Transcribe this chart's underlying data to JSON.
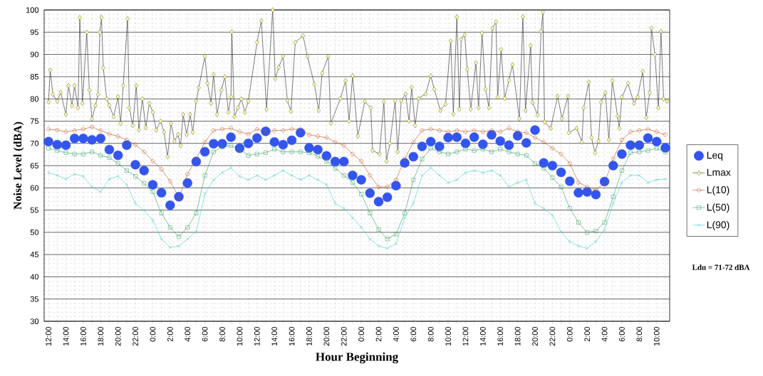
{
  "chart_data": {
    "type": "line",
    "xlabel": "Hour Beginning",
    "ylabel": "Noise Level (dBA)",
    "annotations": [
      "Ldn = 71-72  dBA"
    ],
    "xlim": [
      "--01-01T11:30",
      "--01-04T11:30"
    ],
    "ylim": [
      30,
      100
    ],
    "yticks": [
      30,
      35,
      40,
      45,
      50,
      55,
      60,
      65,
      70,
      75,
      80,
      85,
      90,
      95,
      100
    ],
    "xticks": [
      {
        "value": "--01-01T12:00",
        "label": "12:00"
      },
      {
        "value": "--01-01T13:00",
        "label": null
      },
      {
        "value": "--01-01T14:00",
        "label": "14:00"
      },
      {
        "value": "--01-01T15:00",
        "label": null
      },
      {
        "value": "--01-01T16:00",
        "label": "16:00"
      },
      {
        "value": "--01-01T17:00",
        "label": null
      },
      {
        "value": "--01-01T18:00",
        "label": "18:00"
      },
      {
        "value": "--01-01T19:00",
        "label": null
      },
      {
        "value": "--01-01T20:00",
        "label": "20:00"
      },
      {
        "value": "--01-01T21:00",
        "label": null
      },
      {
        "value": "--01-01T22:00",
        "label": "22:00"
      },
      {
        "value": "--01-01T23:00",
        "label": null
      },
      {
        "value": "--01-02T00:00",
        "label": "0:00"
      },
      {
        "value": "--01-02T01:00",
        "label": null
      },
      {
        "value": "--01-02T02:00",
        "label": "2:00"
      },
      {
        "value": "--01-02T03:00",
        "label": null
      },
      {
        "value": "--01-02T04:00",
        "label": "4:00"
      },
      {
        "value": "--01-02T05:00",
        "label": null
      },
      {
        "value": "--01-02T06:00",
        "label": "6:00"
      },
      {
        "value": "--01-02T07:00",
        "label": null
      },
      {
        "value": "--01-02T08:00",
        "label": "8:00"
      },
      {
        "value": "--01-02T09:00",
        "label": null
      },
      {
        "value": "--01-02T10:00",
        "label": "10:00"
      },
      {
        "value": "--01-02T11:00",
        "label": null
      },
      {
        "value": "--01-02T12:00",
        "label": "12:00"
      },
      {
        "value": "--01-02T13:00",
        "label": null
      },
      {
        "value": "--01-02T14:00",
        "label": "14:00"
      },
      {
        "value": "--01-02T15:00",
        "label": null
      },
      {
        "value": "--01-02T16:00",
        "label": "16:00"
      },
      {
        "value": "--01-02T17:00",
        "label": null
      },
      {
        "value": "--01-02T18:00",
        "label": "18:00"
      },
      {
        "value": "--01-02T19:00",
        "label": null
      },
      {
        "value": "--01-02T20:00",
        "label": "20:00"
      },
      {
        "value": "--01-02T21:00",
        "label": null
      },
      {
        "value": "--01-02T22:00",
        "label": "22:00"
      },
      {
        "value": "--01-02T23:00",
        "label": null
      },
      {
        "value": "--01-03T00:00",
        "label": "0:00"
      },
      {
        "value": "--01-03T01:00",
        "label": null
      },
      {
        "value": "--01-03T02:00",
        "label": "2:00"
      },
      {
        "value": "--01-03T03:00",
        "label": null
      },
      {
        "value": "--01-03T04:00",
        "label": "4:00"
      },
      {
        "value": "--01-03T05:00",
        "label": null
      },
      {
        "value": "--01-03T06:00",
        "label": "6:00"
      },
      {
        "value": "--01-03T07:00",
        "label": null
      },
      {
        "value": "--01-03T08:00",
        "label": "8:00"
      },
      {
        "value": "--01-03T09:00",
        "label": null
      },
      {
        "value": "--01-03T10:00",
        "label": "10:00"
      },
      {
        "value": "--01-03T11:00",
        "label": null
      },
      {
        "value": "--01-03T12:00",
        "label": "12:00"
      },
      {
        "value": "--01-03T13:00",
        "label": null
      },
      {
        "value": "--01-03T14:00",
        "label": "14:00"
      },
      {
        "value": "--01-03T15:00",
        "label": null
      },
      {
        "value": "--01-03T16:00",
        "label": "16:00"
      },
      {
        "value": "--01-03T17:00",
        "label": null
      },
      {
        "value": "--01-03T18:00",
        "label": "18:00"
      },
      {
        "value": "--01-03T19:00",
        "label": null
      },
      {
        "value": "--01-03T20:00",
        "label": "20:00"
      },
      {
        "value": "--01-03T21:00",
        "label": null
      },
      {
        "value": "--01-03T22:00",
        "label": "22:00"
      },
      {
        "value": "--01-03T23:00",
        "label": null
      },
      {
        "value": "--01-04T00:00",
        "label": "0:00"
      },
      {
        "value": "--01-04T01:00",
        "label": null
      },
      {
        "value": "--01-04T02:00",
        "label": "2:00"
      },
      {
        "value": "--01-04T03:00",
        "label": null
      },
      {
        "value": "--01-04T04:00",
        "label": "4:00"
      },
      {
        "value": "--01-04T05:00",
        "label": null
      },
      {
        "value": "--01-04T06:00",
        "label": "6:00"
      },
      {
        "value": "--01-04T07:00",
        "label": null
      },
      {
        "value": "--01-04T08:00",
        "label": "8:00"
      },
      {
        "value": "--01-04T09:00",
        "label": null
      },
      {
        "value": "--01-04T10:00",
        "label": "10:00"
      },
      {
        "value": "--01-04T11:00",
        "label": null
      }
    ],
    "grid": true,
    "legend": "right",
    "x": [
      "--01-01T12:00",
      "--01-01T13:00",
      "--01-01T14:00",
      "--01-01T15:00",
      "--01-01T16:00",
      "--01-01T17:00",
      "--01-01T18:00",
      "--01-01T19:00",
      "--01-01T20:00",
      "--01-01T21:00",
      "--01-01T22:00",
      "--01-01T23:00",
      "--01-02T00:00",
      "--01-02T01:00",
      "--01-02T02:00",
      "--01-02T03:00",
      "--01-02T04:00",
      "--01-02T05:00",
      "--01-02T06:00",
      "--01-02T07:00",
      "--01-02T08:00",
      "--01-02T09:00",
      "--01-02T10:00",
      "--01-02T11:00",
      "--01-02T12:00",
      "--01-02T13:00",
      "--01-02T14:00",
      "--01-02T15:00",
      "--01-02T16:00",
      "--01-02T17:00",
      "--01-02T18:00",
      "--01-02T19:00",
      "--01-02T20:00",
      "--01-02T21:00",
      "--01-02T22:00",
      "--01-02T23:00",
      "--01-03T00:00",
      "--01-03T01:00",
      "--01-03T02:00",
      "--01-03T03:00",
      "--01-03T04:00",
      "--01-03T05:00",
      "--01-03T06:00",
      "--01-03T07:00",
      "--01-03T08:00",
      "--01-03T09:00",
      "--01-03T10:00",
      "--01-03T11:00",
      "--01-03T12:00",
      "--01-03T13:00",
      "--01-03T14:00",
      "--01-03T15:00",
      "--01-03T16:00",
      "--01-03T17:00",
      "--01-03T18:00",
      "--01-03T19:00",
      "--01-03T20:00",
      "--01-03T21:00",
      "--01-03T22:00",
      "--01-03T23:00",
      "--01-04T00:00",
      "--01-04T01:00",
      "--01-04T02:00",
      "--01-04T03:00",
      "--01-04T04:00",
      "--01-04T05:00",
      "--01-04T06:00",
      "--01-04T07:00",
      "--01-04T08:00",
      "--01-04T09:00",
      "--01-04T10:00",
      "--01-04T11:00"
    ],
    "series": [
      {
        "name": "Leq",
        "type": "scatter",
        "marker": "circle",
        "color": "#3355ee",
        "values": [
          70.4,
          69.7,
          69.6,
          71.1,
          71.1,
          70.8,
          71.1,
          68.6,
          67.3,
          69.6,
          65.2,
          63.9,
          60.7,
          58.9,
          56.1,
          58.0,
          61.1,
          65.9,
          68.1,
          69.9,
          69.9,
          71.4,
          68.9,
          70.0,
          71.2,
          72.7,
          70.3,
          69.7,
          70.7,
          72.4,
          69.0,
          68.6,
          67.2,
          65.9,
          65.9,
          62.8,
          61.8,
          58.8,
          56.9,
          57.9,
          60.5,
          65.6,
          67.0,
          69.3,
          70.4,
          69.3,
          71.3,
          71.4,
          70.0,
          71.4,
          69.8,
          71.9,
          70.5,
          69.6,
          71.7,
          70.1,
          73.0,
          65.6,
          65.0,
          63.5,
          61.5,
          58.9,
          59.1,
          58.5,
          61.4,
          65.0,
          67.6,
          69.6,
          69.6,
          71.2,
          70.4,
          69.0
        ]
      },
      {
        "name": "Lmax",
        "marker": "diamond",
        "color": "#ffff99",
        "x": [
          "--01-01T12:00",
          "--01-01T12:12",
          "--01-01T12:30",
          "--01-01T13:00",
          "--01-01T13:24",
          "--01-01T14:00",
          "--01-01T14:18",
          "--01-01T14:42",
          "--01-01T15:00",
          "--01-01T15:24",
          "--01-01T15:36",
          "--01-01T15:54",
          "--01-01T16:24",
          "--01-01T16:42",
          "--01-01T17:00",
          "--01-01T17:24",
          "--01-01T17:42",
          "--01-01T17:54",
          "--01-01T18:06",
          "--01-01T18:18",
          "--01-01T18:42",
          "--01-01T19:00",
          "--01-01T19:30",
          "--01-01T20:00",
          "--01-01T20:18",
          "--01-01T20:36",
          "--01-01T21:06",
          "--01-01T21:18",
          "--01-01T21:42",
          "--01-01T22:06",
          "--01-01T22:24",
          "--01-01T22:48",
          "--01-01T23:12",
          "--01-01T23:36",
          "--01-02T00:00",
          "--01-02T00:24",
          "--01-02T00:54",
          "--01-02T01:18",
          "--01-02T01:42",
          "--01-02T02:06",
          "--01-02T02:30",
          "--01-02T02:54",
          "--01-02T03:12",
          "--01-02T03:30",
          "--01-02T03:54",
          "--01-02T04:18",
          "--01-02T04:36",
          "--01-02T05:00",
          "--01-02T05:18",
          "--01-02T06:00",
          "--01-02T06:18",
          "--01-02T06:42",
          "--01-02T07:00",
          "--01-02T07:24",
          "--01-02T07:54",
          "--01-02T08:18",
          "--01-02T08:42",
          "--01-02T09:00",
          "--01-02T09:06",
          "--01-02T09:24",
          "--01-02T09:48",
          "--01-02T10:12",
          "--01-02T10:36",
          "--01-02T11:00",
          "--01-02T12:00",
          "--01-02T12:30",
          "--01-02T13:06",
          "--01-02T13:48",
          "--01-02T14:06",
          "--01-02T14:30",
          "--01-02T15:00",
          "--01-02T15:30",
          "--01-02T15:54",
          "--01-02T16:24",
          "--01-02T17:18",
          "--01-02T17:48",
          "--01-02T18:36",
          "--01-02T19:06",
          "--01-02T19:30",
          "--01-02T20:12",
          "--01-02T20:30",
          "--01-02T21:36",
          "--01-02T22:12",
          "--01-02T22:36",
          "--01-02T23:00",
          "--01-02T23:36",
          "--01-03T00:24",
          "--01-03T01:06",
          "--01-03T01:18",
          "--01-03T02:06",
          "--01-03T02:36",
          "--01-03T02:54",
          "--01-03T03:18",
          "--01-03T03:54",
          "--01-03T04:12",
          "--01-03T04:36",
          "--01-03T05:06",
          "--01-03T05:30",
          "--01-03T05:48",
          "--01-03T06:12",
          "--01-03T06:36",
          "--01-03T07:24",
          "--01-03T08:00",
          "--01-03T08:24",
          "--01-03T09:06",
          "--01-03T09:42",
          "--01-03T10:18",
          "--01-03T10:36",
          "--01-03T11:00",
          "--01-03T11:18",
          "--01-03T11:30",
          "--01-03T11:54",
          "--01-03T12:12",
          "--01-03T12:36",
          "--01-03T13:12",
          "--01-03T13:30",
          "--01-03T13:54",
          "--01-03T14:18",
          "--01-03T14:42",
          "--01-03T15:06",
          "--01-03T15:30",
          "--01-03T15:42",
          "--01-03T16:06",
          "--01-03T16:30",
          "--01-03T17:00",
          "--01-03T17:24",
          "--01-03T18:12",
          "--01-03T18:36",
          "--01-03T18:54",
          "--01-03T19:30",
          "--01-03T19:42",
          "--01-03T20:18",
          "--01-03T20:42",
          "--01-03T20:54",
          "--01-03T21:06",
          "--01-03T21:48",
          "--01-03T22:36",
          "--01-03T23:06",
          "--01-03T23:48",
          "--01-03T23:54",
          "--01-04T00:48",
          "--01-04T01:24",
          "--01-04T01:36",
          "--01-04T02:12",
          "--01-04T02:30",
          "--01-04T02:54",
          "--01-04T03:18",
          "--01-04T03:36",
          "--01-04T04:06",
          "--01-04T04:30",
          "--01-04T04:54",
          "--01-04T05:30",
          "--01-04T05:42",
          "--01-04T06:00",
          "--01-04T06:42",
          "--01-04T07:24",
          "--01-04T07:48",
          "--01-04T08:24",
          "--01-04T08:48",
          "--01-04T09:12",
          "--01-04T09:24",
          "--01-04T09:48",
          "--01-04T10:12",
          "--01-04T10:30",
          "--01-04T10:48",
          "--01-04T11:12"
        ],
        "values": [
          79.3,
          86.5,
          81.0,
          79.5,
          81.5,
          76.5,
          83.0,
          78.5,
          83.0,
          78.0,
          98.3,
          79.0,
          95.0,
          82.0,
          75.5,
          78.5,
          81.0,
          95.0,
          98.3,
          87.0,
          80.0,
          78.5,
          76.0,
          80.5,
          74.5,
          83.0,
          98.0,
          78.0,
          74.0,
          83.0,
          73.0,
          80.0,
          73.5,
          79.0,
          77.0,
          73.0,
          75.0,
          72.5,
          67.0,
          74.5,
          70.5,
          72.0,
          69.5,
          76.5,
          72.0,
          76.5,
          72.5,
          79.5,
          82.5,
          89.6,
          83.5,
          79.0,
          85.5,
          76.5,
          82.0,
          85.0,
          77.0,
          80.5,
          95.1,
          76.0,
          78.0,
          80.0,
          77.0,
          79.5,
          92.7,
          97.6,
          77.7,
          100,
          84.6,
          87.1,
          89.6,
          79.6,
          77.2,
          92.7,
          94.2,
          89.6,
          83.3,
          77.4,
          85.8,
          89.6,
          74.5,
          80.1,
          84.1,
          75.0,
          85.2,
          71.6,
          79.4,
          78.0,
          68.4,
          67.6,
          79.4,
          66.0,
          70.0,
          79.6,
          68.1,
          79.6,
          81.1,
          75.0,
          82.6,
          74.0,
          80.1,
          81.1,
          85.2,
          82.2,
          77.4,
          78.8,
          93.0,
          76.6,
          98.4,
          77.7,
          93.4,
          94.4,
          86.7,
          77.7,
          88.1,
          78.0,
          94.8,
          82.2,
          78.0,
          95.9,
          97.3,
          80.4,
          91.1,
          80.1,
          84.2,
          87.7,
          75.6,
          98.5,
          77.4,
          92.0,
          79.2,
          76.4,
          95.2,
          99.5,
          74.8,
          73.4,
          80.6,
          75.6,
          80.6,
          72.4,
          73.4,
          70.3,
          78.0,
          83.8,
          71.3,
          67.9,
          70.5,
          79.3,
          81.4,
          70.8,
          84.1,
          76.1,
          73.4,
          80.4,
          83.5,
          79.0,
          80.4,
          86.2,
          75.8,
          81.4,
          95.9,
          90.0,
          78.0,
          95.2,
          80.0,
          79.5
        ]
      },
      {
        "name": "L(10)",
        "marker": "circle",
        "color": "#c0501e",
        "values": [
          73.2,
          73.0,
          72.6,
          72.9,
          73.2,
          73.7,
          72.9,
          72.1,
          71.6,
          70.8,
          69.7,
          68.1,
          66.0,
          64.2,
          61.5,
          57.8,
          63.1,
          66.5,
          70.3,
          72.9,
          73.2,
          73.4,
          72.6,
          72.1,
          73.2,
          72.6,
          72.9,
          72.9,
          73.2,
          73.2,
          71.9,
          71.6,
          71.3,
          70.3,
          69.5,
          67.6,
          66.0,
          62.8,
          60.2,
          60.2,
          61.8,
          66.5,
          70.3,
          72.9,
          73.2,
          72.9,
          72.6,
          72.9,
          72.6,
          72.9,
          72.6,
          72.9,
          72.6,
          73.4,
          72.6,
          72.4,
          71.3,
          70.3,
          68.9,
          67.6,
          65.5,
          61.2,
          60.2,
          59.6,
          61.0,
          66.5,
          70.8,
          72.6,
          72.9,
          73.2,
          72.6,
          72.0
        ]
      },
      {
        "name": "L(50)",
        "marker": "square",
        "color": "#2e9e5e",
        "values": [
          68.9,
          68.4,
          67.9,
          67.6,
          67.6,
          68.1,
          67.3,
          66.8,
          65.5,
          63.9,
          62.6,
          61.0,
          59.1,
          54.3,
          51.1,
          49.0,
          51.1,
          54.3,
          62.8,
          68.1,
          69.2,
          69.5,
          68.7,
          67.3,
          67.6,
          67.9,
          68.7,
          68.1,
          68.1,
          68.1,
          67.9,
          67.1,
          66.0,
          64.4,
          62.8,
          61.2,
          58.6,
          54.3,
          50.6,
          48.5,
          49.6,
          54.3,
          61.8,
          66.5,
          68.9,
          68.1,
          67.6,
          68.1,
          68.7,
          68.4,
          68.7,
          68.1,
          68.7,
          68.1,
          67.6,
          67.3,
          65.5,
          64.4,
          62.3,
          60.2,
          55.4,
          52.2,
          50.0,
          50.3,
          52.2,
          58.0,
          63.9,
          67.9,
          68.1,
          68.4,
          68.9,
          68.0
        ]
      },
      {
        "name": "L(90)",
        "marker": "cross",
        "color": "#40cccc",
        "values": [
          63.4,
          62.8,
          62.0,
          63.1,
          62.6,
          60.2,
          59.1,
          62.0,
          62.6,
          60.7,
          56.5,
          54.9,
          52.7,
          48.5,
          46.6,
          46.9,
          48.5,
          50.1,
          58.6,
          61.8,
          63.4,
          64.5,
          62.6,
          61.8,
          62.8,
          61.8,
          62.8,
          63.9,
          62.8,
          61.8,
          62.8,
          61.8,
          60.7,
          56.5,
          55.4,
          53.3,
          51.1,
          48.5,
          46.9,
          46.4,
          47.4,
          53.3,
          56.5,
          62.8,
          64.5,
          62.8,
          61.2,
          61.8,
          63.4,
          63.9,
          63.4,
          63.9,
          62.8,
          60.2,
          61.2,
          61.8,
          56.5,
          55.4,
          53.8,
          50.1,
          47.9,
          46.9,
          46.4,
          47.9,
          50.6,
          56.5,
          61.2,
          62.8,
          62.8,
          61.2,
          61.8,
          62.0
        ]
      }
    ]
  }
}
